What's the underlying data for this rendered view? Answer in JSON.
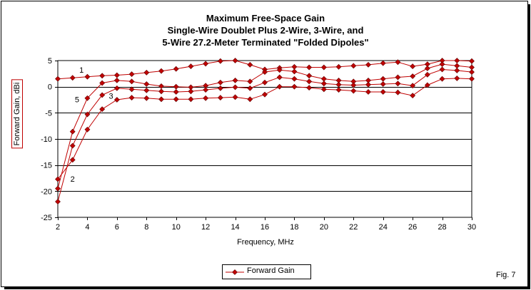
{
  "chart_data": {
    "type": "line",
    "title_lines": [
      "Maximum Free-Space Gain",
      "Single-Wire Doublet Plus 2-Wire, 3-Wire, and",
      "5-Wire 27.2-Meter Terminated \"Folded Dipoles\""
    ],
    "xlabel": "Frequency, MHz",
    "ylabel": "Forward Gain, dBi",
    "xlim": [
      2,
      30
    ],
    "ylim": [
      -25,
      5
    ],
    "xticks": [
      2,
      4,
      6,
      8,
      10,
      12,
      14,
      16,
      18,
      20,
      22,
      24,
      26,
      28,
      30
    ],
    "yticks": [
      5,
      0,
      -5,
      -10,
      -15,
      -20,
      -25
    ],
    "grid": "horizontal",
    "legend_label": "Forward Gain",
    "legend_position": "bottom-center",
    "line_color": "#c00000",
    "x": [
      2,
      3,
      4,
      5,
      6,
      7,
      8,
      9,
      10,
      11,
      12,
      13,
      14,
      15,
      16,
      17,
      18,
      19,
      20,
      21,
      22,
      23,
      24,
      25,
      26,
      27,
      28,
      29,
      30
    ],
    "series": [
      {
        "name": "1",
        "values": [
          1.5,
          1.7,
          1.9,
          2.1,
          2.2,
          2.4,
          2.7,
          3.0,
          3.4,
          3.9,
          4.4,
          4.9,
          5.0,
          4.2,
          3.3,
          3.6,
          3.8,
          3.7,
          3.7,
          3.8,
          4.0,
          4.2,
          4.5,
          4.7,
          3.9,
          4.3,
          5.0,
          5.0,
          4.9
        ]
      },
      {
        "name": "5",
        "values": [
          -19.5,
          -8.6,
          -2.2,
          0.7,
          1.2,
          1.0,
          0.5,
          0.1,
          0.0,
          -0.1,
          0.2,
          0.8,
          1.2,
          1.0,
          2.8,
          3.2,
          2.9,
          2.1,
          1.5,
          1.2,
          1.0,
          1.2,
          1.5,
          1.8,
          2.0,
          3.5,
          4.3,
          4.0,
          3.7
        ]
      },
      {
        "name": "3",
        "values": [
          -22.0,
          -11.3,
          -5.3,
          -1.6,
          -0.3,
          -0.5,
          -0.7,
          -0.9,
          -1.0,
          -0.9,
          -0.6,
          -0.3,
          -0.1,
          -0.3,
          0.8,
          1.8,
          1.5,
          1.0,
          0.6,
          0.4,
          0.3,
          0.4,
          0.5,
          0.6,
          0.2,
          2.3,
          3.3,
          3.1,
          2.8
        ]
      },
      {
        "name": "2",
        "values": [
          -17.7,
          -14.0,
          -8.2,
          -4.3,
          -2.5,
          -2.1,
          -2.2,
          -2.4,
          -2.4,
          -2.4,
          -2.2,
          -2.1,
          -2.0,
          -2.4,
          -1.5,
          0.0,
          0.0,
          -0.2,
          -0.5,
          -0.6,
          -0.8,
          -1.0,
          -1.0,
          -1.1,
          -1.7,
          0.3,
          1.5,
          1.6,
          1.5
        ]
      }
    ],
    "annotations": [
      {
        "text": "1",
        "x": 3.6,
        "y": 2.7
      },
      {
        "text": "5",
        "x": 3.3,
        "y": -3.0
      },
      {
        "text": "3",
        "x": 5.6,
        "y": -2.3
      },
      {
        "text": "2",
        "x": 3.0,
        "y": -18.2
      }
    ]
  },
  "figure_label": "Fig. 7"
}
